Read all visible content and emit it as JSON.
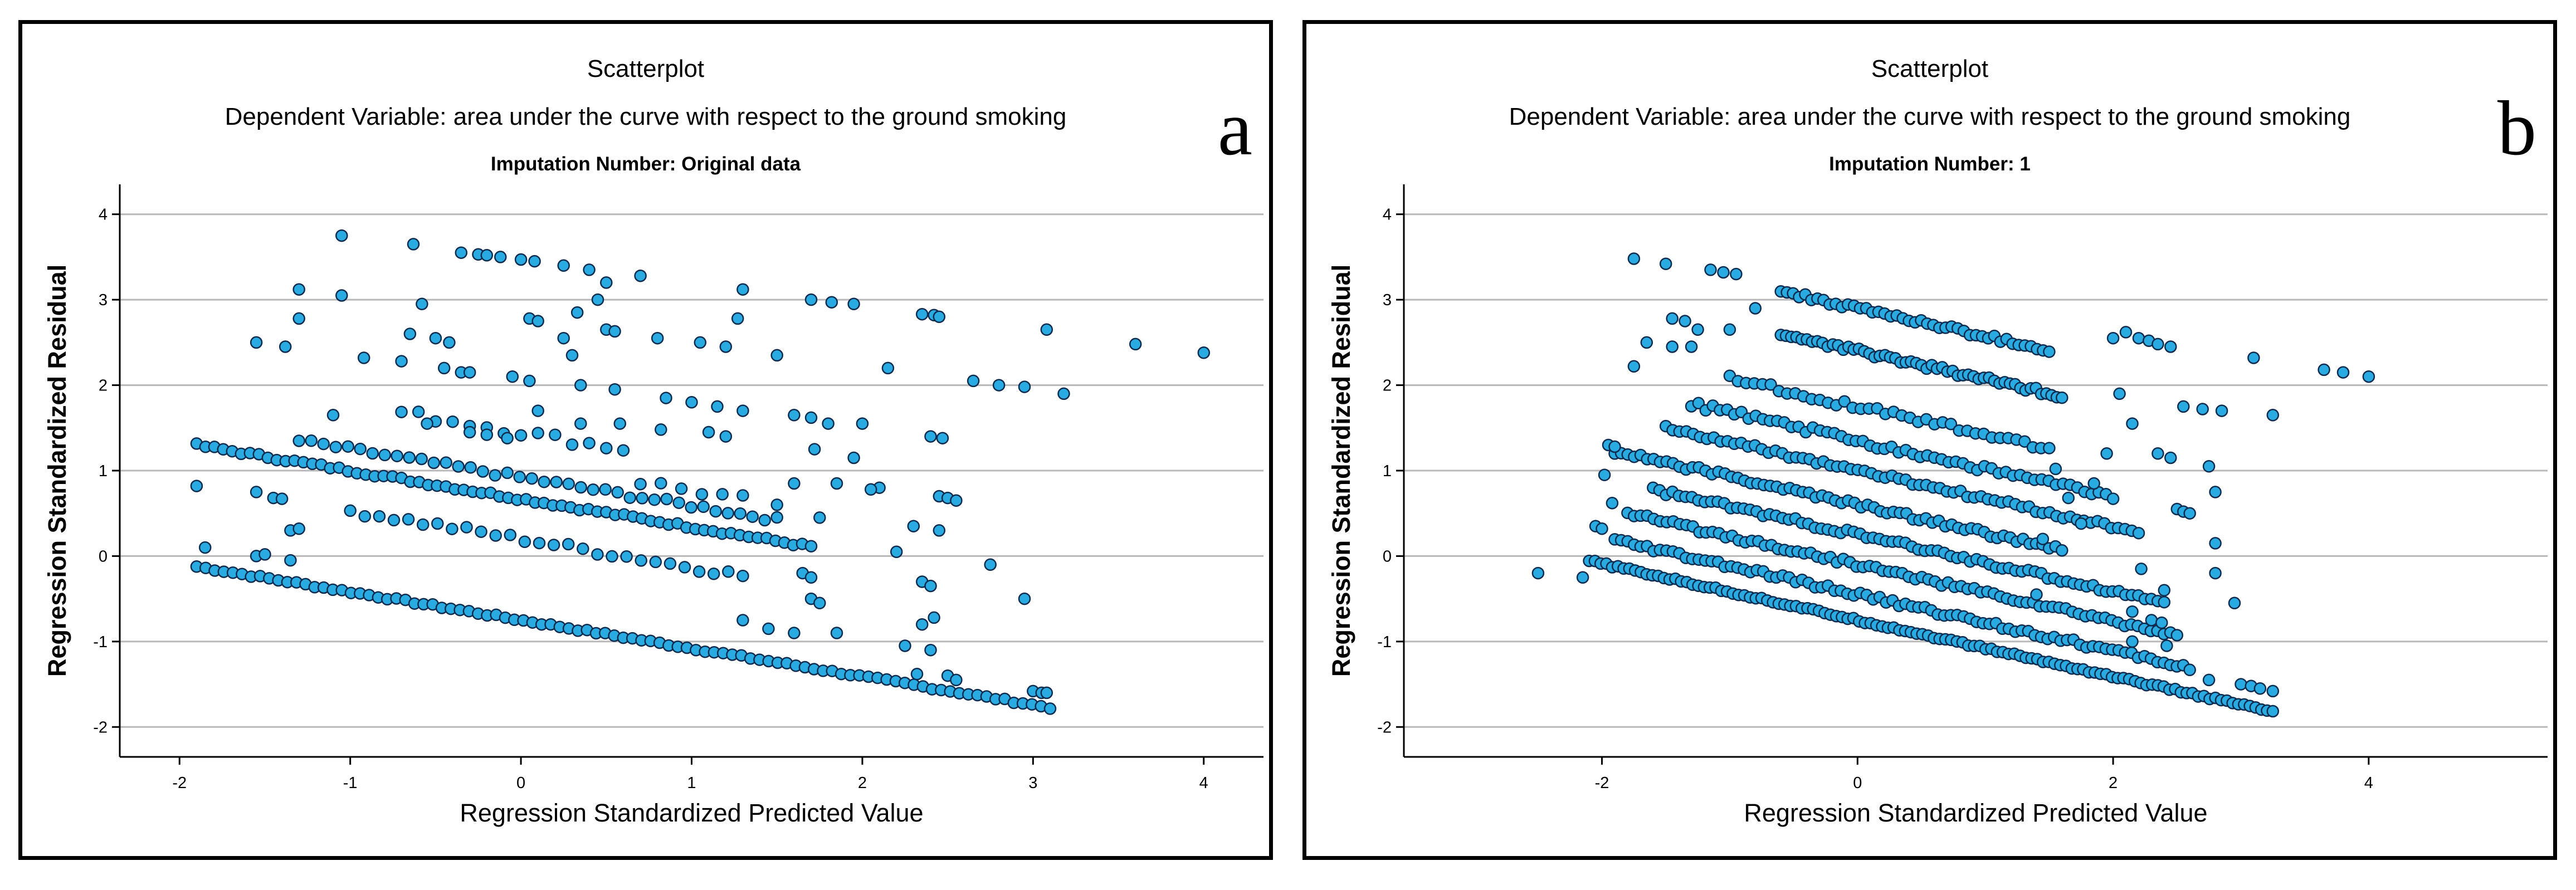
{
  "chart_data": [
    {
      "id": "a",
      "type": "scatter",
      "panel_letter": "a",
      "title": "Scatterplot",
      "subtitle": "Dependent Variable: area under the curve with respect to the ground smoking",
      "subsubtitle": "Imputation Number: Original data",
      "xlabel": "Regression Standardized Predicted Value",
      "ylabel": "Regression Standardized Residual",
      "xlim": [
        -2.35,
        4.35
      ],
      "ylim": [
        -2.35,
        4.35
      ],
      "xticks": [
        -2,
        -1,
        0,
        1,
        2,
        3,
        4
      ],
      "yticks": [
        -2,
        -1,
        0,
        1,
        2,
        3,
        4
      ],
      "grid": "horizontal",
      "marker_color": "#29abe2",
      "marker_edge": "#0d2b4e",
      "bands": [
        {
          "x": [
            -1.9,
            3.1
          ],
          "offset": -0.75,
          "n": 95,
          "jitter": 0.015
        },
        {
          "x": [
            -1.9,
            1.7
          ],
          "offset": 0.67,
          "n": 70,
          "jitter": 0.02
        },
        {
          "x": [
            -1.3,
            1.5
          ],
          "offset": 0.62,
          "n": 40,
          "jitter": 0.03,
          "shift": 0.3
        },
        {
          "x": [
            -1.0,
            1.3
          ],
          "offset": 0.65,
          "n": 28,
          "jitter": 0.04,
          "shift": -0.45
        },
        {
          "x": [
            -0.7,
            0.6
          ],
          "offset": 1.45,
          "n": 14,
          "jitter": 0.05
        },
        {
          "x": [
            0.7,
            1.3
          ],
          "offset": 1.1,
          "n": 6,
          "jitter": 0.05
        }
      ],
      "extra_points": [
        [
          -1.05,
          3.75
        ],
        [
          -0.63,
          3.65
        ],
        [
          -0.35,
          3.55
        ],
        [
          -0.25,
          3.53
        ],
        [
          -0.2,
          3.52
        ],
        [
          -0.12,
          3.5
        ],
        [
          0.0,
          3.47
        ],
        [
          0.08,
          3.45
        ],
        [
          0.25,
          3.4
        ],
        [
          0.4,
          3.35
        ],
        [
          0.7,
          3.28
        ],
        [
          -1.05,
          3.05
        ],
        [
          -1.3,
          3.12
        ],
        [
          -1.3,
          2.78
        ],
        [
          -0.58,
          2.95
        ],
        [
          1.3,
          3.12
        ],
        [
          1.7,
          3.0
        ],
        [
          1.82,
          2.97
        ],
        [
          1.95,
          2.95
        ],
        [
          2.35,
          2.83
        ],
        [
          2.42,
          2.82
        ],
        [
          2.45,
          2.8
        ],
        [
          -1.55,
          2.5
        ],
        [
          -1.38,
          2.45
        ],
        [
          -0.92,
          2.32
        ],
        [
          -0.7,
          2.28
        ],
        [
          -0.65,
          2.6
        ],
        [
          -0.5,
          2.55
        ],
        [
          -0.42,
          2.5
        ],
        [
          -0.45,
          2.2
        ],
        [
          -0.35,
          2.15
        ],
        [
          -0.3,
          2.15
        ],
        [
          -1.1,
          1.65
        ],
        [
          -0.55,
          1.55
        ],
        [
          -0.3,
          1.45
        ],
        [
          -0.2,
          1.42
        ],
        [
          -0.08,
          1.38
        ],
        [
          0.1,
          1.7
        ],
        [
          0.35,
          1.55
        ],
        [
          0.58,
          1.55
        ],
        [
          0.82,
          1.48
        ],
        [
          1.1,
          1.45
        ],
        [
          1.2,
          1.4
        ],
        [
          0.05,
          2.78
        ],
        [
          0.1,
          2.75
        ],
        [
          0.5,
          2.65
        ],
        [
          0.55,
          2.63
        ],
        [
          0.8,
          2.55
        ],
        [
          1.05,
          2.5
        ],
        [
          1.2,
          2.45
        ],
        [
          1.27,
          2.78
        ],
        [
          1.5,
          2.35
        ],
        [
          0.5,
          3.2
        ],
        [
          0.45,
          3.0
        ],
        [
          0.33,
          2.85
        ],
        [
          0.25,
          2.55
        ],
        [
          0.3,
          2.35
        ],
        [
          -0.05,
          2.1
        ],
        [
          0.05,
          2.05
        ],
        [
          0.35,
          2.0
        ],
        [
          0.55,
          1.95
        ],
        [
          0.85,
          1.85
        ],
        [
          1.0,
          1.8
        ],
        [
          1.15,
          1.75
        ],
        [
          1.3,
          1.7
        ],
        [
          1.6,
          1.65
        ],
        [
          1.7,
          1.62
        ],
        [
          1.8,
          1.55
        ],
        [
          1.72,
          1.25
        ],
        [
          2.0,
          1.55
        ],
        [
          1.95,
          1.15
        ],
        [
          2.15,
          2.2
        ],
        [
          2.1,
          0.8
        ],
        [
          2.05,
          0.78
        ],
        [
          1.85,
          0.85
        ],
        [
          1.5,
          0.6
        ],
        [
          1.6,
          0.85
        ],
        [
          1.75,
          0.45
        ],
        [
          2.2,
          0.05
        ],
        [
          2.3,
          0.35
        ],
        [
          2.4,
          1.4
        ],
        [
          2.47,
          1.38
        ],
        [
          2.45,
          0.7
        ],
        [
          2.5,
          0.68
        ],
        [
          2.55,
          0.65
        ],
        [
          2.45,
          0.3
        ],
        [
          2.35,
          -0.3
        ],
        [
          2.4,
          -0.35
        ],
        [
          2.25,
          -1.05
        ],
        [
          2.35,
          -0.8
        ],
        [
          2.42,
          -0.72
        ],
        [
          2.4,
          -1.1
        ],
        [
          2.5,
          -1.4
        ],
        [
          2.55,
          -1.45
        ],
        [
          2.32,
          -1.38
        ],
        [
          1.7,
          -0.5
        ],
        [
          1.75,
          -0.55
        ],
        [
          1.85,
          -0.9
        ],
        [
          1.6,
          -0.9
        ],
        [
          1.65,
          -0.2
        ],
        [
          1.7,
          -0.25
        ],
        [
          1.45,
          -0.85
        ],
        [
          1.3,
          -0.75
        ],
        [
          2.65,
          2.05
        ],
        [
          2.8,
          2.0
        ],
        [
          2.95,
          1.98
        ],
        [
          3.08,
          2.65
        ],
        [
          3.18,
          1.9
        ],
        [
          3.6,
          2.48
        ],
        [
          4.0,
          2.38
        ],
        [
          2.75,
          -0.1
        ],
        [
          2.95,
          -0.5
        ],
        [
          3.0,
          -1.58
        ],
        [
          3.05,
          -1.6
        ],
        [
          3.08,
          -1.6
        ],
        [
          -1.9,
          0.82
        ],
        [
          -1.85,
          0.1
        ],
        [
          -1.55,
          0.75
        ],
        [
          -1.55,
          0.0
        ],
        [
          -1.5,
          0.02
        ],
        [
          -1.35,
          0.3
        ],
        [
          -1.3,
          0.32
        ],
        [
          -1.35,
          -0.05
        ],
        [
          -1.45,
          0.68
        ],
        [
          -1.4,
          0.67
        ]
      ]
    },
    {
      "id": "b",
      "type": "scatter",
      "panel_letter": "b",
      "title": "Scatterplot",
      "subtitle": "Dependent Variable: area under the curve with respect to the ground smoking",
      "subsubtitle": "Imputation Number: 1",
      "xlabel": "Regression Standardized Predicted Value",
      "ylabel": "Regression Standardized Residual",
      "xlim": [
        -3.55,
        5.4
      ],
      "ylim": [
        -2.35,
        4.35
      ],
      "xticks": [
        -2,
        0,
        2,
        4
      ],
      "yticks": [
        -2,
        -1,
        0,
        1,
        2,
        3,
        4
      ],
      "grid": "horizontal",
      "marker_color": "#29abe2",
      "marker_edge": "#0d2b4e",
      "bands": [
        {
          "x": [
            -2.1,
            3.25
          ],
          "offset": -0.75,
          "n": 120,
          "jitter": 0.015
        },
        {
          "x": [
            -1.9,
            2.6
          ],
          "offset": -0.45,
          "n": 90,
          "jitter": 0.03
        },
        {
          "x": [
            -1.8,
            2.5
          ],
          "offset": -0.1,
          "n": 85,
          "jitter": 0.03
        },
        {
          "x": [
            -1.6,
            2.4
          ],
          "offset": 0.25,
          "n": 80,
          "jitter": 0.03
        },
        {
          "x": [
            -1.9,
            1.6
          ],
          "offset": 0.6,
          "n": 70,
          "jitter": 0.03
        },
        {
          "x": [
            -1.5,
            2.2
          ],
          "offset": 1.0,
          "n": 70,
          "jitter": 0.03
        },
        {
          "x": [
            -1.3,
            2.0
          ],
          "offset": 1.35,
          "n": 60,
          "jitter": 0.04
        },
        {
          "x": [
            -1.0,
            1.5
          ],
          "offset": 1.75,
          "n": 40,
          "jitter": 0.04
        },
        {
          "x": [
            -0.6,
            1.6
          ],
          "offset": 2.4,
          "n": 55,
          "jitter": 0.03
        },
        {
          "x": [
            -0.6,
            1.5
          ],
          "offset": 2.9,
          "n": 45,
          "jitter": 0.03
        }
      ],
      "extra_points": [
        [
          -1.75,
          3.48
        ],
        [
          -1.5,
          3.42
        ],
        [
          -1.15,
          3.35
        ],
        [
          -1.05,
          3.32
        ],
        [
          -0.95,
          3.3
        ],
        [
          -1.75,
          2.22
        ],
        [
          -1.65,
          2.5
        ],
        [
          -1.45,
          2.78
        ],
        [
          -1.35,
          2.75
        ],
        [
          -1.3,
          2.45
        ],
        [
          -1.45,
          2.45
        ],
        [
          -1.25,
          2.65
        ],
        [
          -1.0,
          2.65
        ],
        [
          -0.8,
          2.9
        ],
        [
          -2.5,
          -0.2
        ],
        [
          -2.15,
          -0.25
        ],
        [
          -2.05,
          0.35
        ],
        [
          -2.0,
          0.32
        ],
        [
          -1.95,
          1.3
        ],
        [
          -1.9,
          1.28
        ],
        [
          -1.98,
          0.95
        ],
        [
          -1.92,
          0.62
        ],
        [
          2.1,
          2.62
        ],
        [
          2.2,
          2.55
        ],
        [
          2.28,
          2.52
        ],
        [
          2.35,
          2.48
        ],
        [
          2.45,
          2.45
        ],
        [
          2.55,
          1.75
        ],
        [
          2.7,
          1.72
        ],
        [
          2.85,
          1.7
        ],
        [
          2.75,
          1.05
        ],
        [
          2.5,
          0.55
        ],
        [
          2.55,
          0.52
        ],
        [
          2.6,
          0.5
        ],
        [
          2.8,
          0.75
        ],
        [
          2.8,
          0.15
        ],
        [
          2.8,
          -0.2
        ],
        [
          2.95,
          -0.55
        ],
        [
          2.35,
          1.2
        ],
        [
          2.45,
          1.15
        ],
        [
          2.15,
          1.55
        ],
        [
          2.05,
          1.9
        ],
        [
          2.0,
          2.55
        ],
        [
          1.95,
          1.2
        ],
        [
          1.85,
          0.85
        ],
        [
          1.75,
          0.38
        ],
        [
          1.65,
          0.68
        ],
        [
          1.55,
          1.02
        ],
        [
          1.45,
          0.2
        ],
        [
          1.4,
          -0.45
        ],
        [
          2.15,
          -1.0
        ],
        [
          2.3,
          -0.75
        ],
        [
          2.38,
          -0.78
        ],
        [
          2.42,
          -1.05
        ],
        [
          2.15,
          -0.65
        ],
        [
          2.4,
          -0.4
        ],
        [
          2.22,
          -0.15
        ],
        [
          2.75,
          -1.45
        ],
        [
          3.0,
          -1.5
        ],
        [
          3.08,
          -1.52
        ],
        [
          3.15,
          -1.55
        ],
        [
          3.25,
          -1.58
        ],
        [
          3.1,
          2.32
        ],
        [
          3.25,
          1.65
        ],
        [
          3.65,
          2.18
        ],
        [
          3.8,
          2.15
        ],
        [
          4.0,
          2.1
        ]
      ]
    }
  ]
}
